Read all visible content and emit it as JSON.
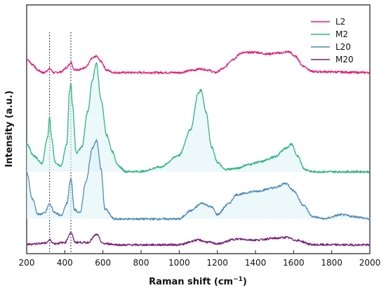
{
  "chart_data": {
    "type": "line",
    "xlabel": "Raman shift (cm",
    "xlabel_sup": "−1",
    "xlabel_end": ")",
    "ylabel": "Intensity (a.u.)",
    "xlim": [
      200,
      2000
    ],
    "ylim": [
      0,
      100
    ],
    "x_ticks": [
      "200",
      "400",
      "600",
      "800",
      "1000",
      "1200",
      "1400",
      "1600",
      "1800",
      "2000"
    ],
    "y_ticks_shown": false,
    "grid": false,
    "legend": "top-right",
    "reference_lines_x": [
      320,
      432
    ],
    "series": [
      {
        "name": "L2",
        "color": "#e8197a",
        "baseline": 75.5,
        "points": [
          [
            200,
            81.3
          ],
          [
            230,
            79
          ],
          [
            260,
            76.4
          ],
          [
            290,
            75.4
          ],
          [
            320,
            77.1
          ],
          [
            345,
            75.4
          ],
          [
            380,
            75.8
          ],
          [
            410,
            77.6
          ],
          [
            432,
            79.8
          ],
          [
            450,
            76.8
          ],
          [
            480,
            76.8
          ],
          [
            510,
            77.9
          ],
          [
            545,
            81.5
          ],
          [
            565,
            82.4
          ],
          [
            590,
            80.2
          ],
          [
            620,
            76.5
          ],
          [
            660,
            75.5
          ],
          [
            1000,
            75.5
          ],
          [
            1080,
            76.6
          ],
          [
            1110,
            77.1
          ],
          [
            1150,
            76.6
          ],
          [
            1190,
            75.5
          ],
          [
            1230,
            77.2
          ],
          [
            1280,
            81.1
          ],
          [
            1330,
            83.9
          ],
          [
            1400,
            84.1
          ],
          [
            1460,
            83.4
          ],
          [
            1530,
            83.8
          ],
          [
            1575,
            84.3
          ],
          [
            1610,
            82.3
          ],
          [
            1650,
            78.3
          ],
          [
            1700,
            75.9
          ],
          [
            2000,
            75.5
          ]
        ]
      },
      {
        "name": "M2",
        "color": "#2eb582",
        "baseline": 33.5,
        "points": [
          [
            200,
            45.3
          ],
          [
            240,
            40
          ],
          [
            280,
            37
          ],
          [
            310,
            48
          ],
          [
            320,
            57.1
          ],
          [
            330,
            48
          ],
          [
            350,
            37.5
          ],
          [
            380,
            35.8
          ],
          [
            410,
            45
          ],
          [
            425,
            68
          ],
          [
            432,
            70.8
          ],
          [
            440,
            62
          ],
          [
            460,
            41.4
          ],
          [
            490,
            44
          ],
          [
            520,
            59
          ],
          [
            545,
            72
          ],
          [
            565,
            79.6
          ],
          [
            590,
            64
          ],
          [
            620,
            49
          ],
          [
            650,
            42
          ],
          [
            680,
            36
          ],
          [
            720,
            33.6
          ],
          [
            800,
            33.6
          ],
          [
            900,
            35.5
          ],
          [
            1000,
            40.5
          ],
          [
            1060,
            51.4
          ],
          [
            1100,
            66.7
          ],
          [
            1115,
            68.2
          ],
          [
            1140,
            59
          ],
          [
            1170,
            44
          ],
          [
            1200,
            37.5
          ],
          [
            1240,
            34.5
          ],
          [
            1300,
            34.9
          ],
          [
            1360,
            36.5
          ],
          [
            1420,
            37.6
          ],
          [
            1500,
            39.7
          ],
          [
            1560,
            43.5
          ],
          [
            1590,
            45.2
          ],
          [
            1620,
            40
          ],
          [
            1660,
            34.5
          ],
          [
            1700,
            33.5
          ],
          [
            2000,
            33.5
          ]
        ]
      },
      {
        "name": "L20",
        "color": "#4f8cba",
        "baseline": 13.5,
        "points": [
          [
            200,
            33.2
          ],
          [
            230,
            22
          ],
          [
            260,
            15.4
          ],
          [
            295,
            16
          ],
          [
            320,
            19.9
          ],
          [
            345,
            16.4
          ],
          [
            380,
            14.8
          ],
          [
            410,
            20
          ],
          [
            432,
            30.6
          ],
          [
            450,
            17.5
          ],
          [
            480,
            16.1
          ],
          [
            510,
            29
          ],
          [
            545,
            43.5
          ],
          [
            567,
            46.8
          ],
          [
            590,
            34.6
          ],
          [
            610,
            17.8
          ],
          [
            660,
            13.5
          ],
          [
            1000,
            13.5
          ],
          [
            1060,
            17
          ],
          [
            1120,
            20.2
          ],
          [
            1170,
            18.6
          ],
          [
            1200,
            15.4
          ],
          [
            1260,
            20
          ],
          [
            1300,
            23.8
          ],
          [
            1400,
            25.2
          ],
          [
            1500,
            26.7
          ],
          [
            1560,
            28.6
          ],
          [
            1600,
            25.5
          ],
          [
            1650,
            19.5
          ],
          [
            1700,
            14.5
          ],
          [
            1760,
            13.6
          ],
          [
            1850,
            15.3
          ],
          [
            1920,
            14.5
          ],
          [
            2000,
            13.5
          ]
        ]
      },
      {
        "name": "M20",
        "color": "#7b1f7d",
        "baseline": 2.5,
        "points": [
          [
            200,
            2.8
          ],
          [
            300,
            3.3
          ],
          [
            320,
            4.6
          ],
          [
            345,
            3.1
          ],
          [
            400,
            3.5
          ],
          [
            432,
            7.7
          ],
          [
            455,
            3.6
          ],
          [
            520,
            3.5
          ],
          [
            567,
            6.9
          ],
          [
            600,
            3.1
          ],
          [
            700,
            2.5
          ],
          [
            1000,
            2.6
          ],
          [
            1100,
            4.6
          ],
          [
            1150,
            3.7
          ],
          [
            1200,
            3
          ],
          [
            1300,
            5
          ],
          [
            1400,
            4.6
          ],
          [
            1500,
            5.3
          ],
          [
            1560,
            5.7
          ],
          [
            1620,
            4.4
          ],
          [
            1700,
            2.6
          ],
          [
            2000,
            2.5
          ]
        ]
      }
    ]
  }
}
